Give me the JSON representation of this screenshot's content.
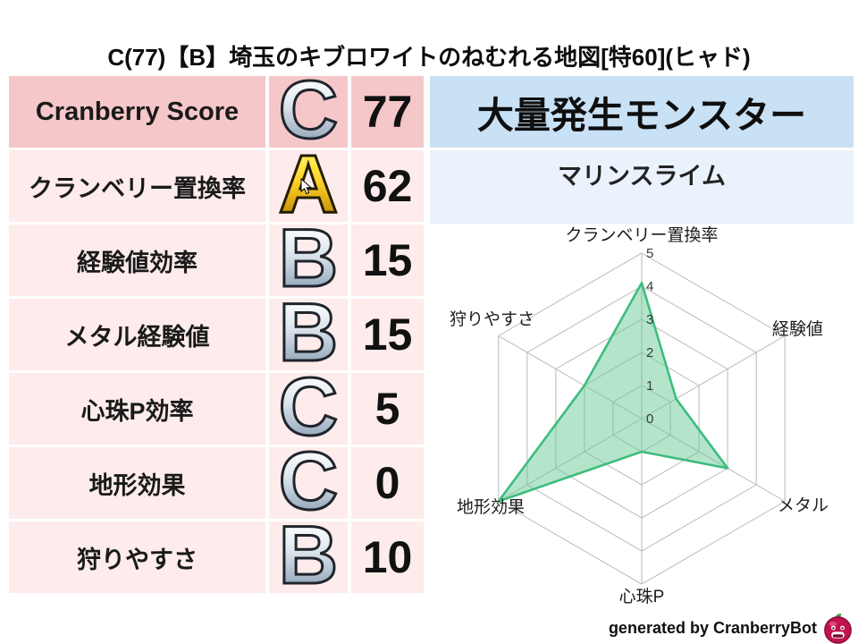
{
  "title": "C(77)【B】埼玉のキブロワイトのねむれる地図[特60](ヒャド)",
  "score_table": {
    "rows": [
      {
        "label": "Cranberry Score",
        "grade": "C",
        "tier": "silver",
        "value": "77",
        "highlight": true
      },
      {
        "label": "クランベリー置換率",
        "grade": "A",
        "tier": "gold",
        "value": "62",
        "highlight": false
      },
      {
        "label": "経験値効率",
        "grade": "B",
        "tier": "silver",
        "value": "15",
        "highlight": false
      },
      {
        "label": "メタル経験値",
        "grade": "B",
        "tier": "silver",
        "value": "15",
        "highlight": false
      },
      {
        "label": "心珠P効率",
        "grade": "C",
        "tier": "silver",
        "value": "5",
        "highlight": false
      },
      {
        "label": "地形効果",
        "grade": "C",
        "tier": "silver",
        "value": "0",
        "highlight": false
      },
      {
        "label": "狩りやすさ",
        "grade": "B",
        "tier": "silver",
        "value": "10",
        "highlight": false
      }
    ]
  },
  "monster_panel": {
    "header": "大量発生モンスター",
    "monster_name": "マリンスライム"
  },
  "chart_data": {
    "type": "radar",
    "categories": [
      "クランベリー置換率",
      "経験値",
      "メタル",
      "心珠P",
      "地形効果",
      "狩りやすさ"
    ],
    "values": [
      4.1,
      1.2,
      3,
      1,
      5,
      2
    ],
    "ticks": [
      0,
      1,
      2,
      3,
      4,
      5
    ],
    "rmax": 5,
    "grid": true,
    "legend": "none",
    "fill_color": "#62c992",
    "fill_opacity": 0.48,
    "stroke_color": "#3dbd7d",
    "grid_color": "#b9b9b9",
    "tick_color": "#3a3a3a",
    "label_color": "#1c1c1c"
  },
  "footer": {
    "credit": "generated by CranberryBot",
    "icon": "cranberrybot-berry-icon"
  },
  "colors": {
    "row_highlight_pink": "#f6c7c9",
    "row_pale_pink": "#fdeceb",
    "monster_header_blue": "#c9e1f5",
    "monster_name_blue": "#eaf2fb",
    "grade_gold": "#ffd427",
    "grade_silver": "#dfe7ee"
  }
}
